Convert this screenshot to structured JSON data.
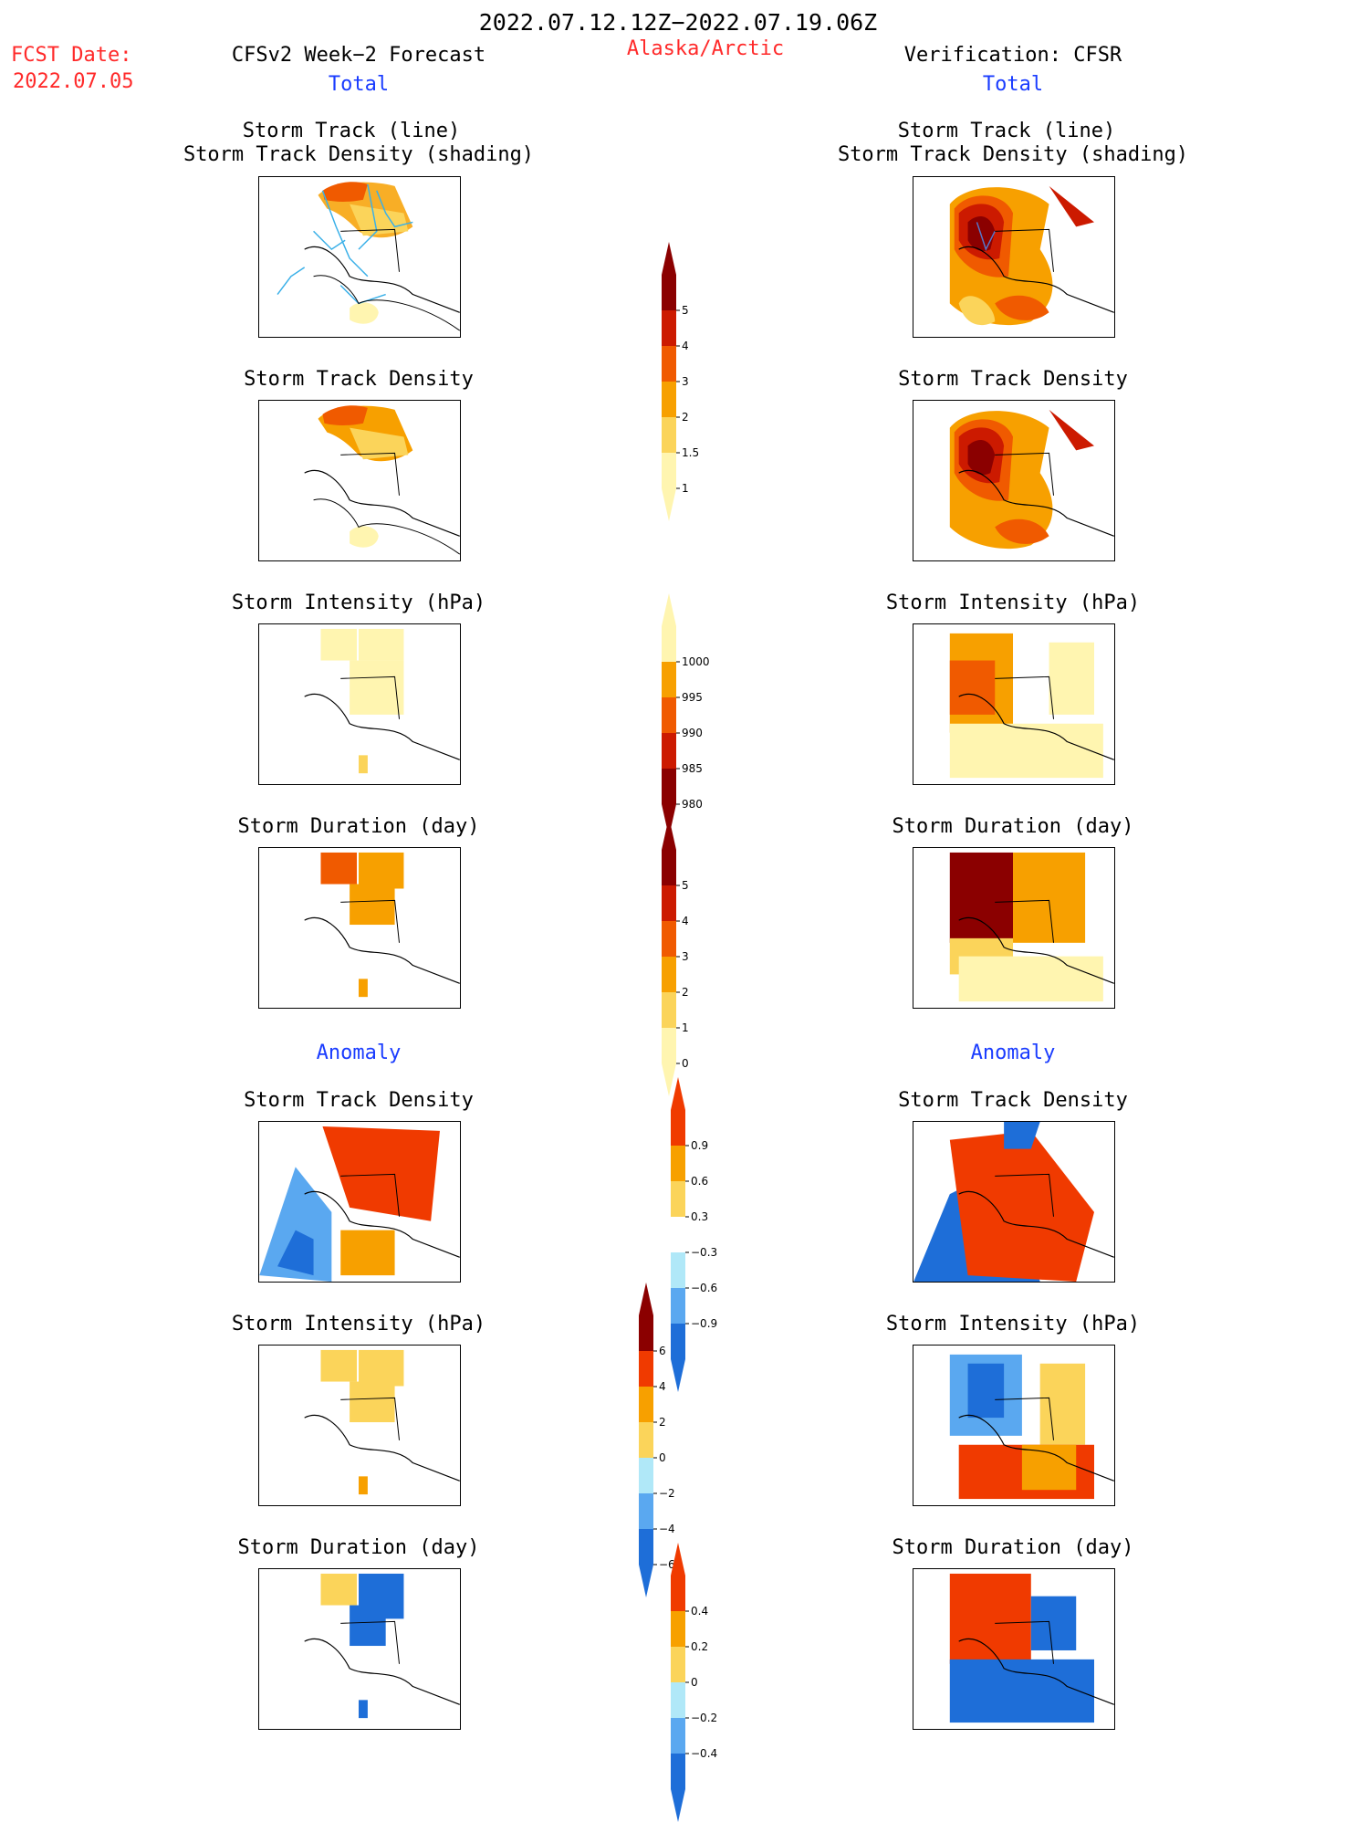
{
  "header": {
    "period": "2022.07.12.12Z−2022.07.19.06Z",
    "fcst_label": "FCST Date:",
    "fcst_date": "2022.07.05",
    "forecast_title": "CFSv2 Week−2 Forecast",
    "region": "Alaska/Arctic",
    "verification_title": "Verification: CFSR",
    "left_total": "Total",
    "right_total": "Total",
    "left_anomaly": "Anomaly",
    "right_anomaly": "Anomaly"
  },
  "panel_titles": {
    "track_line": "Storm Track (line)",
    "track_shading": "Storm Track Density (shading)",
    "density": "Storm Track Density",
    "intensity": "Storm Intensity (hPa)",
    "duration": "Storm Duration (day)"
  },
  "colorbars": {
    "density_total": {
      "labels": [
        "5",
        "4",
        "3",
        "2",
        "1.5",
        "1"
      ],
      "colors": [
        "#8b0000",
        "#cc1a00",
        "#f05a00",
        "#f7a000",
        "#fbd45a",
        "#fff5b0"
      ]
    },
    "intensity_total": {
      "labels": [
        "1000",
        "995",
        "990",
        "985",
        "980"
      ],
      "colors": [
        "#fff5b0",
        "#f7a000",
        "#f05a00",
        "#cc1a00",
        "#8b0000"
      ]
    },
    "duration_total": {
      "labels": [
        "5",
        "4",
        "3",
        "2",
        "1",
        "0"
      ],
      "colors": [
        "#8b0000",
        "#cc1a00",
        "#f05a00",
        "#f7a000",
        "#fbd45a",
        "#fff5b0"
      ]
    },
    "density_anom": {
      "labels": [
        "0.9",
        "0.6",
        "0.3",
        "−0.3",
        "−0.6",
        "−0.9"
      ],
      "colors": [
        "#f03a00",
        "#f7a000",
        "#fbd45a",
        "#ffffff",
        "#b0e8f8",
        "#5aa8f0",
        "#1e6ed8"
      ]
    },
    "intensity_anom": {
      "labels": [
        "6",
        "4",
        "2",
        "0",
        "−2",
        "−4",
        "−6"
      ],
      "colors": [
        "#8b0000",
        "#f03a00",
        "#f7a000",
        "#fbd45a",
        "#b0e8f8",
        "#5aa8f0",
        "#1e6ed8"
      ]
    },
    "duration_anom": {
      "labels": [
        "0.4",
        "0.2",
        "0",
        "−0.2",
        "−0.4"
      ],
      "colors": [
        "#f03a00",
        "#f7a000",
        "#fbd45a",
        "#b0e8f8",
        "#5aa8f0",
        "#1e6ed8"
      ]
    }
  },
  "colors": {
    "title_red": "#ff2a2a",
    "title_blue": "#1a3cff",
    "track_line": "#3ab0e8"
  }
}
